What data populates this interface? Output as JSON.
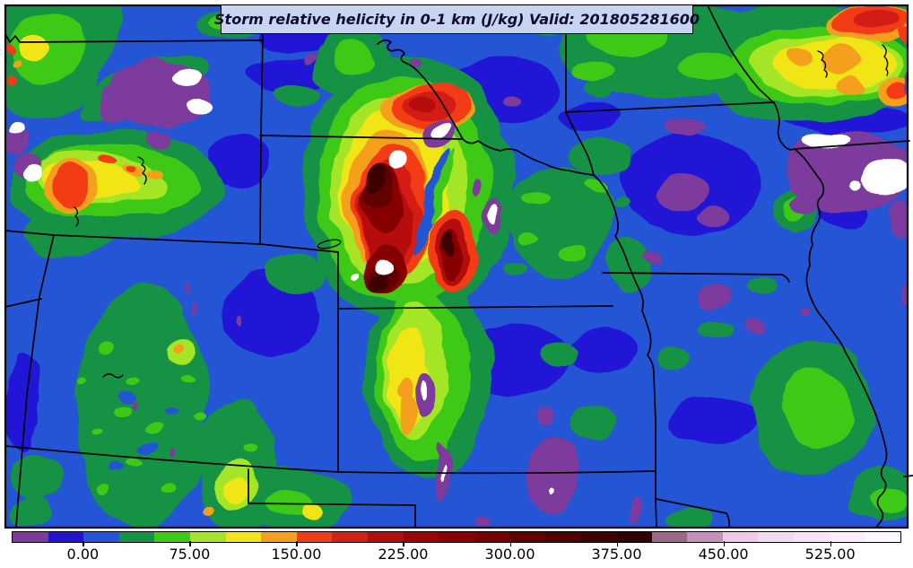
{
  "title": {
    "text": "Storm relative helicity in 0-1 km (J/kg) Valid: 201805281600"
  },
  "chart_data": {
    "type": "heatmap",
    "title": "Storm relative helicity in 0-1 km (J/kg) Valid: 201805281600",
    "field": "Storm relative helicity in 0-1 km",
    "units": "J/kg",
    "valid_time": "201805281600",
    "legend_position": "bottom",
    "colorbar": {
      "orientation": "horizontal",
      "tick_labels": [
        "0.00",
        "75.00",
        "150.00",
        "225.00",
        "300.00",
        "375.00",
        "450.00",
        "525.00"
      ],
      "tick_values": [
        0,
        75,
        150,
        225,
        300,
        375,
        450,
        525
      ],
      "levels": {
        "min": -50,
        "max": 575,
        "step": 25
      },
      "colors": [
        "#7c3a9d",
        "#2313d6",
        "#2455d4",
        "#169245",
        "#3ec919",
        "#a4e627",
        "#f2e515",
        "#f5a01c",
        "#f33b19",
        "#d41f14",
        "#b50d0d",
        "#9c0505",
        "#870101",
        "#740000",
        "#610000",
        "#4f0000",
        "#3e0000",
        "#300006",
        "#9a6a85",
        "#c292ba",
        "#eec9ea",
        "#f3d9f1",
        "#f8e3f7",
        "#fbeefb",
        "#fef8fe"
      ]
    },
    "map_style": {
      "background_fill": "#2455d4",
      "state_border_color": "#000000",
      "frame_color": "#000000",
      "title_box_fill": "#c7d4f2"
    }
  }
}
